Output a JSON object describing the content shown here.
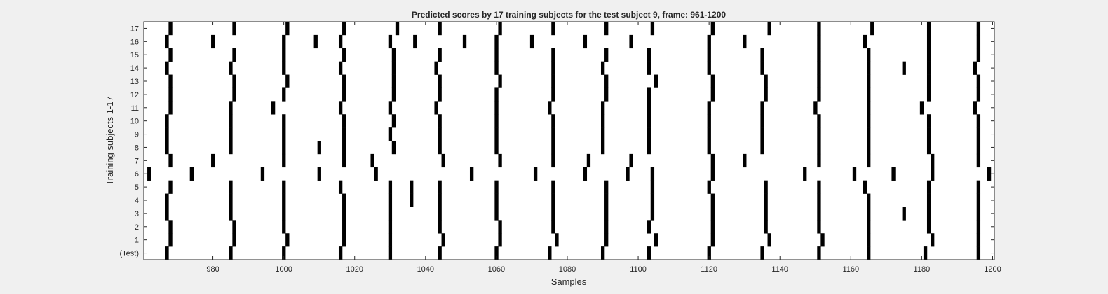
{
  "chart_data": {
    "type": "heatmap",
    "title": "Predicted scores by 17 training subjects for the test subject 9, frame: 961-1200",
    "xlabel": "Samples",
    "ylabel": "Training subjects 1-17",
    "xlim": [
      961,
      1200
    ],
    "x_ticks": [
      980,
      1000,
      1020,
      1040,
      1060,
      1080,
      1100,
      1120,
      1140,
      1160,
      1180,
      1200
    ],
    "y_tick_labels": [
      "(Test)",
      "1",
      "2",
      "3",
      "4",
      "5",
      "6",
      "7",
      "8",
      "9",
      "10",
      "11",
      "12",
      "13",
      "14",
      "15",
      "16",
      "17"
    ],
    "grid": false,
    "colors": {
      "peak": "#000000",
      "background": "#ffffff",
      "figure_bg": "#f0f0f0",
      "axis": "#262626"
    },
    "series": [
      {
        "label": "(Test)",
        "peaks": [
          967,
          985,
          1000,
          1016,
          1030,
          1044,
          1060,
          1075,
          1090,
          1103,
          1120,
          1135,
          1151,
          1165,
          1181,
          1196
        ]
      },
      {
        "label": "1",
        "peaks": [
          968,
          986,
          1001,
          1017,
          1030,
          1045,
          1061,
          1077,
          1091,
          1105,
          1121,
          1137,
          1152,
          1165,
          1183,
          1196
        ]
      },
      {
        "label": "2",
        "peaks": [
          968,
          986,
          1000,
          1017,
          1030,
          1044,
          1061,
          1076,
          1091,
          1103,
          1121,
          1136,
          1151,
          1165,
          1182,
          1196
        ]
      },
      {
        "label": "3",
        "peaks": [
          967,
          985,
          1000,
          1017,
          1030,
          1044,
          1060,
          1076,
          1091,
          1104,
          1121,
          1136,
          1151,
          1165,
          1175,
          1182,
          1196
        ]
      },
      {
        "label": "4",
        "peaks": [
          967,
          985,
          1000,
          1017,
          1030,
          1036,
          1044,
          1060,
          1076,
          1091,
          1104,
          1121,
          1136,
          1151,
          1165,
          1182,
          1196
        ]
      },
      {
        "label": "5",
        "peaks": [
          968,
          985,
          1000,
          1016,
          1030,
          1036,
          1044,
          1060,
          1076,
          1091,
          1104,
          1120,
          1136,
          1151,
          1164,
          1182,
          1196
        ]
      },
      {
        "label": "6",
        "peaks": [
          962,
          974,
          994,
          1010,
          1026,
          1053,
          1071,
          1085,
          1097,
          1104,
          1121,
          1147,
          1161,
          1172,
          1183,
          1199
        ]
      },
      {
        "label": "7",
        "peaks": [
          968,
          980,
          1000,
          1017,
          1025,
          1045,
          1061,
          1076,
          1086,
          1098,
          1121,
          1130,
          1151,
          1165,
          1183,
          1196
        ]
      },
      {
        "label": "8",
        "peaks": [
          967,
          985,
          1000,
          1010,
          1017,
          1031,
          1044,
          1060,
          1076,
          1090,
          1103,
          1120,
          1135,
          1151,
          1165,
          1182,
          1196
        ]
      },
      {
        "label": "9",
        "peaks": [
          967,
          985,
          1000,
          1017,
          1030,
          1044,
          1060,
          1076,
          1090,
          1103,
          1120,
          1135,
          1151,
          1165,
          1182,
          1196
        ]
      },
      {
        "label": "10",
        "peaks": [
          967,
          985,
          1000,
          1017,
          1031,
          1044,
          1060,
          1076,
          1090,
          1103,
          1120,
          1135,
          1151,
          1165,
          1182,
          1196
        ]
      },
      {
        "label": "11",
        "peaks": [
          968,
          985,
          997,
          1016,
          1030,
          1043,
          1060,
          1075,
          1090,
          1103,
          1120,
          1135,
          1150,
          1165,
          1180,
          1195
        ]
      },
      {
        "label": "12",
        "peaks": [
          968,
          986,
          1000,
          1017,
          1031,
          1044,
          1060,
          1076,
          1091,
          1103,
          1121,
          1136,
          1151,
          1165,
          1182,
          1196
        ]
      },
      {
        "label": "13",
        "peaks": [
          968,
          986,
          1001,
          1017,
          1031,
          1044,
          1061,
          1076,
          1091,
          1105,
          1121,
          1136,
          1151,
          1165,
          1182,
          1196
        ]
      },
      {
        "label": "14",
        "peaks": [
          967,
          985,
          1000,
          1016,
          1031,
          1043,
          1060,
          1076,
          1090,
          1103,
          1120,
          1135,
          1151,
          1165,
          1175,
          1182,
          1195
        ]
      },
      {
        "label": "15",
        "peaks": [
          968,
          986,
          1000,
          1017,
          1031,
          1044,
          1060,
          1076,
          1091,
          1103,
          1120,
          1135,
          1151,
          1165,
          1182,
          1196
        ]
      },
      {
        "label": "16",
        "peaks": [
          967,
          980,
          1000,
          1009,
          1016,
          1030,
          1037,
          1051,
          1060,
          1070,
          1085,
          1098,
          1120,
          1130,
          1151,
          1164,
          1182,
          1196
        ]
      },
      {
        "label": "17",
        "peaks": [
          968,
          986,
          1001,
          1017,
          1032,
          1044,
          1061,
          1076,
          1091,
          1104,
          1121,
          1137,
          1151,
          1166,
          1182,
          1196
        ]
      }
    ]
  }
}
